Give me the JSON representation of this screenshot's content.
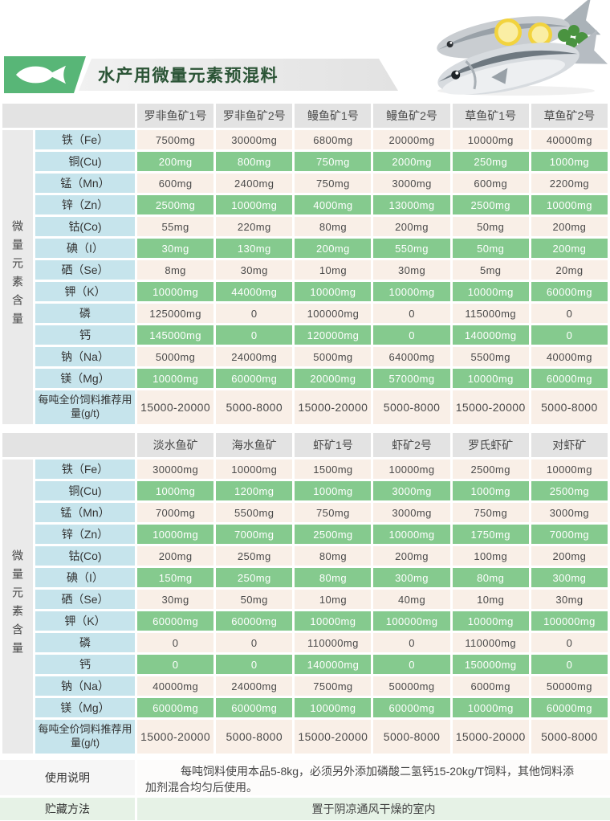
{
  "banner": {
    "title": "水产用微量元素预混料"
  },
  "colors": {
    "accent_green": "#58b677",
    "title_green": "#2b5436",
    "row_green": "#85ca8e",
    "row_cream": "#f9efe7",
    "label_blue": "#c6e4ec",
    "header_gray": "#e3e3e3",
    "side_gray": "#eaeaea",
    "storage_green": "#e6f2e6"
  },
  "tables": [
    {
      "section_label": "微量元素含量",
      "columns": [
        "罗非鱼矿1号",
        "罗非鱼矿2号",
        "鳗鱼矿1号",
        "鳗鱼矿2号",
        "草鱼矿1号",
        "草鱼矿2号"
      ],
      "rows": [
        [
          "铁（Fe）",
          "7500mg",
          "30000mg",
          "6800mg",
          "20000mg",
          "10000mg",
          "40000mg"
        ],
        [
          "铜(Cu)",
          "200mg",
          "800mg",
          "750mg",
          "2000mg",
          "250mg",
          "1000mg"
        ],
        [
          "锰（Mn）",
          "600mg",
          "2400mg",
          "750mg",
          "3000mg",
          "600mg",
          "2200mg"
        ],
        [
          "锌（Zn）",
          "2500mg",
          "10000mg",
          "4000mg",
          "13000mg",
          "2500mg",
          "10000mg"
        ],
        [
          "钴(Co)",
          "55mg",
          "220mg",
          "80mg",
          "200mg",
          "50mg",
          "200mg"
        ],
        [
          "碘（I）",
          "30mg",
          "130mg",
          "200mg",
          "550mg",
          "50mg",
          "200mg"
        ],
        [
          "硒（Se）",
          "8mg",
          "30mg",
          "10mg",
          "30mg",
          "5mg",
          "20mg"
        ],
        [
          "钾（K）",
          "10000mg",
          "44000mg",
          "10000mg",
          "10000mg",
          "10000mg",
          "60000mg"
        ],
        [
          "磷",
          "125000mg",
          "0",
          "100000mg",
          "0",
          "115000mg",
          "0"
        ],
        [
          "钙",
          "145000mg",
          "0",
          "120000mg",
          "0",
          "140000mg",
          "0"
        ],
        [
          "钠（Na）",
          "5000mg",
          "24000mg",
          "5000mg",
          "64000mg",
          "5500mg",
          "40000mg"
        ],
        [
          "镁（Mg）",
          "10000mg",
          "60000mg",
          "20000mg",
          "57000mg",
          "10000mg",
          "60000mg"
        ],
        [
          "每吨全价饲料推荐用量(g/t)",
          "15000-20000",
          "5000-8000",
          "15000-20000",
          "5000-8000",
          "15000-20000",
          "5000-8000"
        ]
      ]
    },
    {
      "section_label": "微量元素含量",
      "columns": [
        "淡水鱼矿",
        "海水鱼矿",
        "虾矿1号",
        "虾矿2号",
        "罗氏虾矿",
        "对虾矿"
      ],
      "rows": [
        [
          "铁（Fe）",
          "30000mg",
          "10000mg",
          "1500mg",
          "10000mg",
          "2500mg",
          "10000mg"
        ],
        [
          "铜(Cu)",
          "1000mg",
          "1200mg",
          "1000mg",
          "3000mg",
          "1000mg",
          "2500mg"
        ],
        [
          "锰（Mn）",
          "7000mg",
          "5500mg",
          "750mg",
          "3000mg",
          "750mg",
          "3000mg"
        ],
        [
          "锌（Zn）",
          "10000mg",
          "7000mg",
          "2500mg",
          "10000mg",
          "1750mg",
          "7000mg"
        ],
        [
          "钴(Co)",
          "200mg",
          "250mg",
          "80mg",
          "200mg",
          "100mg",
          "200mg"
        ],
        [
          "碘（I）",
          "150mg",
          "250mg",
          "80mg",
          "300mg",
          "80mg",
          "300mg"
        ],
        [
          "硒（Se）",
          "30mg",
          "50mg",
          "10mg",
          "40mg",
          "10mg",
          "30mg"
        ],
        [
          "钾（K）",
          "60000mg",
          "60000mg",
          "10000mg",
          "100000mg",
          "10000mg",
          "100000mg"
        ],
        [
          "磷",
          "0",
          "0",
          "110000mg",
          "0",
          "110000mg",
          "0"
        ],
        [
          "钙",
          "0",
          "0",
          "140000mg",
          "0",
          "150000mg",
          "0"
        ],
        [
          "钠（Na）",
          "40000mg",
          "24000mg",
          "7500mg",
          "50000mg",
          "6000mg",
          "50000mg"
        ],
        [
          "镁（Mg）",
          "60000mg",
          "60000mg",
          "10000mg",
          "60000mg",
          "10000mg",
          "60000mg"
        ],
        [
          "每吨全价饲料推荐用量(g/t)",
          "15000-20000",
          "5000-8000",
          "15000-20000",
          "5000-8000",
          "15000-20000",
          "5000-8000"
        ]
      ]
    }
  ],
  "footer": {
    "usage": {
      "label": "使用说明",
      "text": "每吨饲料使用本品5-8kg，必须另外添加磷酸二氢钙15-20kg/T饲料，其他饲料添加剂混合均匀后使用。"
    },
    "storage": {
      "label": "贮藏方法",
      "text": "置于阴凉通风干燥的室内"
    }
  }
}
